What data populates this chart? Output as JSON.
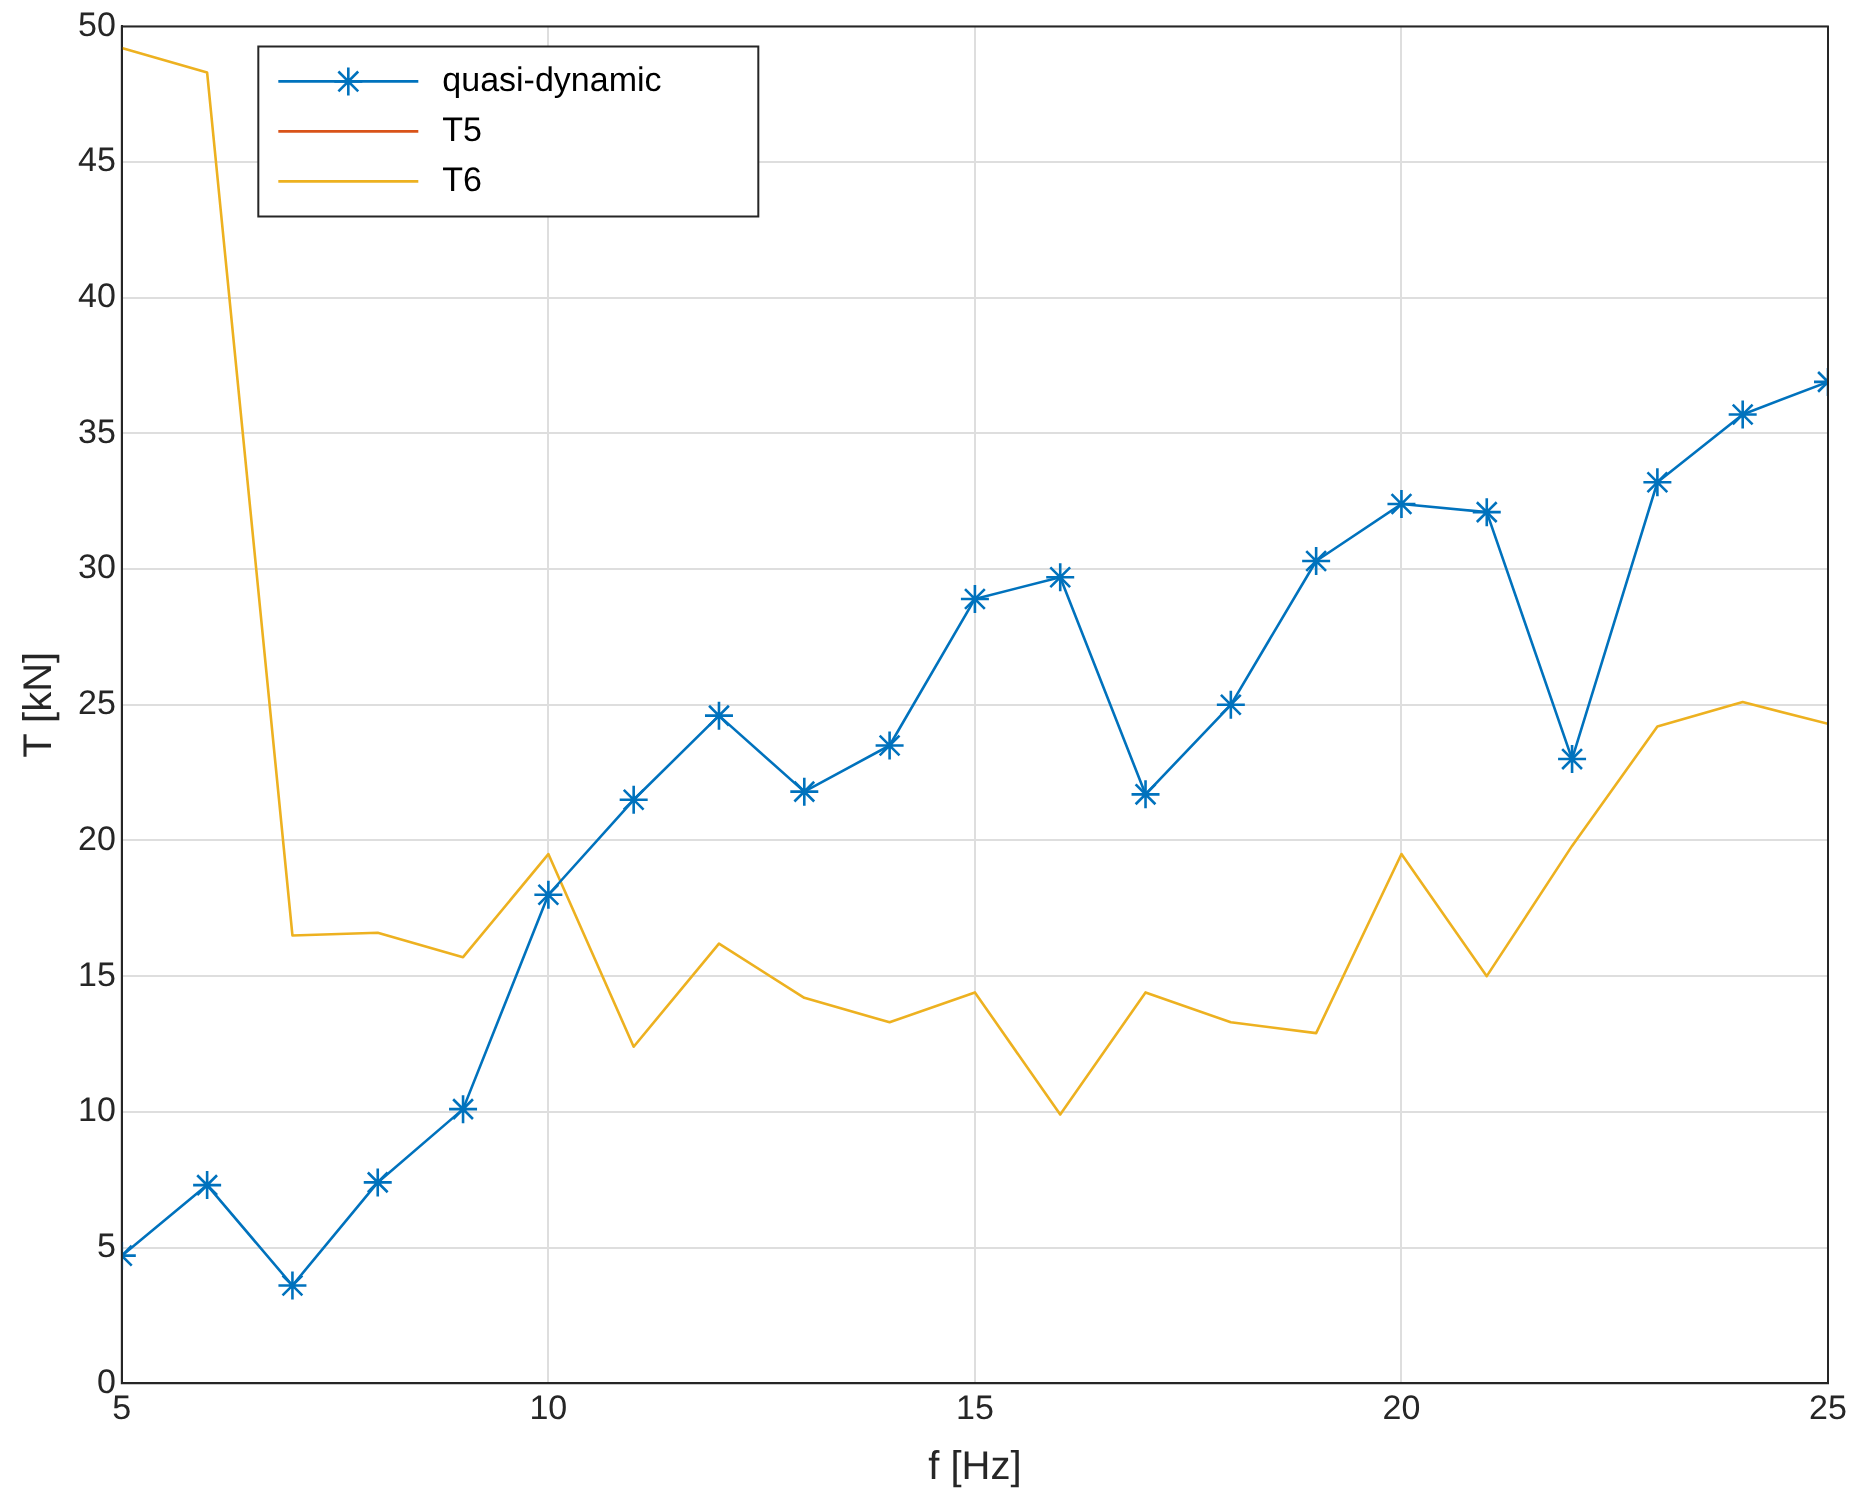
{
  "chart_data": {
    "type": "line",
    "xlabel": "f [Hz]",
    "ylabel": "T [kN]",
    "x": [
      5,
      6,
      7,
      8,
      9,
      10,
      11,
      12,
      13,
      14,
      15,
      16,
      17,
      18,
      19,
      20,
      21,
      22,
      23,
      24,
      25
    ],
    "series": [
      {
        "name": "quasi-dynamic",
        "color": "#0072bd",
        "marker": "cross",
        "values": [
          4.7,
          7.3,
          3.6,
          7.4,
          10.1,
          18.0,
          21.5,
          24.6,
          21.8,
          23.5,
          28.9,
          29.7,
          21.7,
          25.0,
          30.3,
          32.4,
          32.1,
          23.0,
          33.2,
          35.7,
          36.9
        ]
      },
      {
        "name": "T5",
        "color": "#d95319",
        "marker": "none",
        "values": [
          null,
          null,
          null,
          null,
          null,
          null,
          null,
          null,
          null,
          null,
          null,
          null,
          null,
          null,
          null,
          null,
          null,
          null,
          null,
          null,
          null
        ]
      },
      {
        "name": "T6",
        "color": "#edb120",
        "marker": "none",
        "values": [
          49.2,
          48.3,
          16.5,
          16.6,
          15.7,
          19.5,
          12.4,
          16.2,
          14.2,
          13.3,
          14.4,
          9.9,
          14.4,
          13.3,
          12.9,
          19.5,
          15.0,
          19.8,
          24.2,
          25.1,
          24.3
        ]
      }
    ],
    "xlim": [
      5,
      25
    ],
    "xticks": [
      5,
      10,
      15,
      20,
      25
    ],
    "ylim": [
      0,
      50
    ],
    "yticks": [
      0,
      5,
      10,
      15,
      20,
      25,
      30,
      35,
      40,
      45,
      50
    ],
    "grid": true,
    "legend": "top left",
    "line_style": "solid"
  }
}
